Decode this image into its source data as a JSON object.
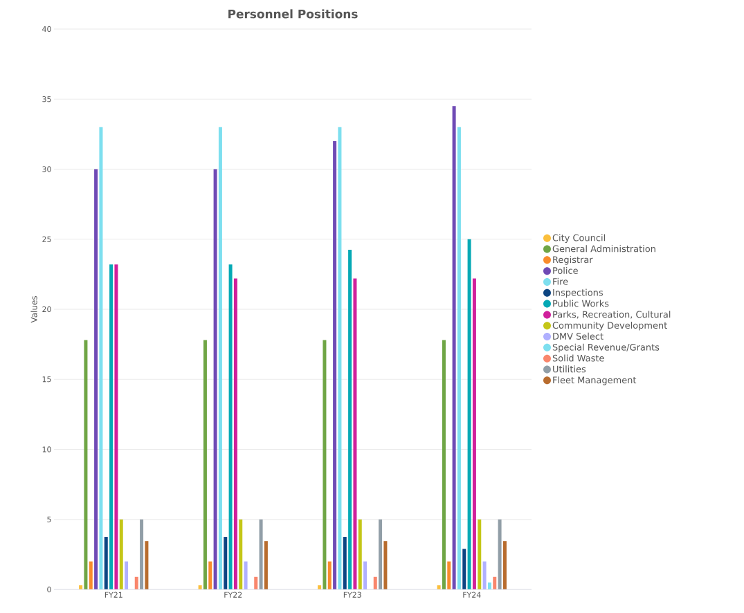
{
  "chart_data": {
    "type": "bar",
    "title": "Personnel Positions",
    "ylabel": "Values",
    "categories": [
      "FY21",
      "FY22",
      "FY23",
      "FY24"
    ],
    "series": [
      {
        "name": "City Council",
        "color": "#fbbf3c",
        "values": [
          0.3,
          0.3,
          0.3,
          0.3
        ]
      },
      {
        "name": "General Administration",
        "color": "#6fa545",
        "values": [
          17.8,
          17.8,
          17.8,
          17.8
        ]
      },
      {
        "name": "Registrar",
        "color": "#f98c2c",
        "values": [
          2,
          2,
          2,
          2
        ]
      },
      {
        "name": "Police",
        "color": "#6f4ab5",
        "values": [
          30,
          30,
          32,
          34.5
        ]
      },
      {
        "name": "Fire",
        "color": "#7ddfef",
        "values": [
          33,
          33,
          33,
          33
        ]
      },
      {
        "name": "Inspections",
        "color": "#0d4582",
        "values": [
          3.75,
          3.75,
          3.75,
          2.9
        ]
      },
      {
        "name": "Public Works",
        "color": "#05a9b5",
        "values": [
          23.2,
          23.2,
          24.25,
          25
        ]
      },
      {
        "name": "Parks, Recreation, Cultural",
        "color": "#d0209c",
        "values": [
          23.2,
          22.2,
          22.2,
          22.2
        ]
      },
      {
        "name": "Community Development",
        "color": "#c4c617",
        "values": [
          5,
          5,
          5,
          5
        ]
      },
      {
        "name": "DMV Select",
        "color": "#b0b0ff",
        "values": [
          2,
          2,
          2,
          2
        ]
      },
      {
        "name": "Special Revenue/Grants",
        "color": "#7ddfef",
        "values": [
          0,
          0,
          0,
          0.5
        ]
      },
      {
        "name": "Solid Waste",
        "color": "#f9866c",
        "values": [
          0.9,
          0.9,
          0.9,
          0.9
        ]
      },
      {
        "name": "Utilities",
        "color": "#919ea7",
        "values": [
          5,
          5,
          5,
          5
        ]
      },
      {
        "name": "Fleet Management",
        "color": "#b86c2e",
        "values": [
          3.45,
          3.45,
          3.45,
          3.45
        ]
      }
    ],
    "ylim": [
      0,
      40
    ],
    "yticks": [
      0,
      5,
      10,
      15,
      20,
      25,
      30,
      35,
      40
    ],
    "grid": "y",
    "legend": "right"
  }
}
